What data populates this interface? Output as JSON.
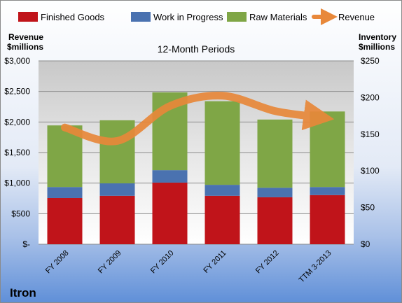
{
  "company": "Itron",
  "legend": {
    "finished_goods": "Finished Goods",
    "work_in_progress": "Work in Progress",
    "raw_materials": "Raw Materials",
    "revenue": "Revenue"
  },
  "left_axis_title": [
    "Revenue",
    "$millions"
  ],
  "right_axis_title": [
    "Inventory",
    "$millions"
  ],
  "colors": {
    "finished_goods": "#c0141a",
    "work_in_progress": "#4a72b0",
    "raw_materials": "#7fa646",
    "revenue": "#e8883a"
  },
  "chart_data": {
    "type": "bar",
    "title": "12-Month Periods",
    "categories": [
      "FY 2008",
      "FY 2009",
      "FY 2010",
      "FY 2011",
      "FY 2012",
      "TTM 3-2013"
    ],
    "stacked": true,
    "series": [
      {
        "name": "Finished Goods",
        "axis": "right",
        "values": [
          63,
          66,
          84,
          66,
          64,
          67
        ]
      },
      {
        "name": "Work in Progress",
        "axis": "right",
        "values": [
          15,
          17,
          17,
          15,
          13,
          11
        ]
      },
      {
        "name": "Raw Materials",
        "axis": "right",
        "values": [
          84,
          86,
          106,
          114,
          93,
          103
        ]
      },
      {
        "name": "Revenue",
        "axis": "left",
        "type": "line",
        "values": [
          1910,
          1690,
          2260,
          2430,
          2180,
          2080
        ]
      }
    ],
    "y_left": {
      "min": 0,
      "max": 3000,
      "ticks": [
        "$-",
        "$500",
        "$1,000",
        "$1,500",
        "$2,000",
        "$2,500",
        "$3,000"
      ]
    },
    "y_right": {
      "min": 0,
      "max": 250,
      "ticks": [
        "$0",
        "$50",
        "$100",
        "$150",
        "$200",
        "$250"
      ]
    },
    "grid": true,
    "legend_position": "top"
  }
}
